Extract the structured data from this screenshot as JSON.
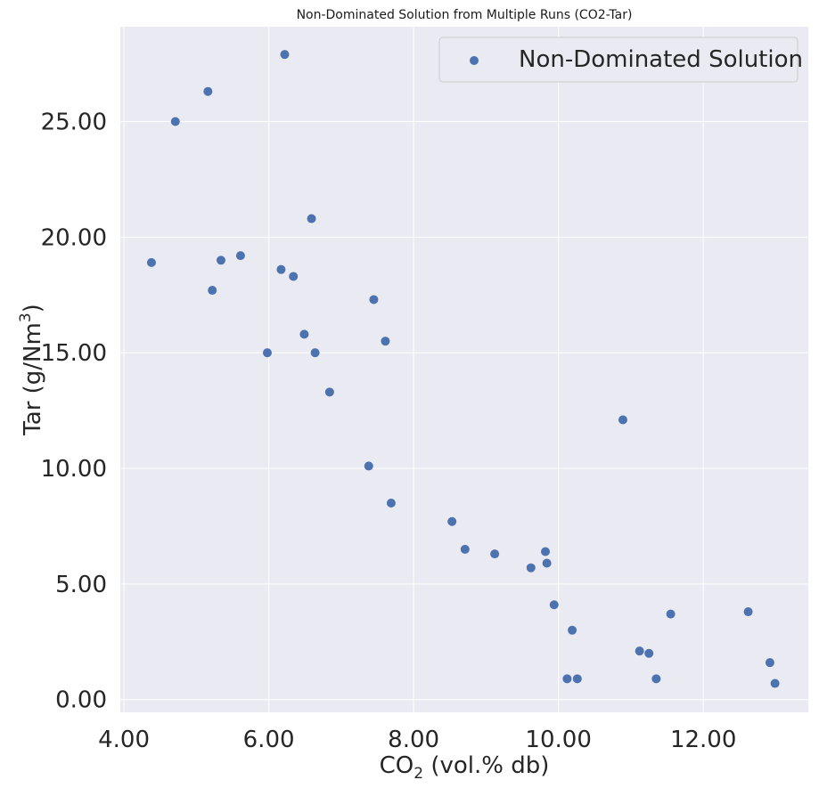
{
  "chart_data": {
    "type": "scatter",
    "title": "Non-Dominated Solution from Multiple Runs (CO2-Tar)",
    "xlabel": {
      "main": "CO",
      "sub": "2",
      "rest": " (vol.% db)"
    },
    "ylabel": {
      "main": "Tar (g/Nm",
      "sup": "3",
      "rest": ")"
    },
    "xlim": [
      3.95,
      13.45
    ],
    "ylim": [
      -0.55,
      29.1
    ],
    "x_ticks": [
      4,
      6,
      8,
      10,
      12
    ],
    "x_tick_labels": [
      "4.00",
      "6.00",
      "8.00",
      "10.00",
      "12.00"
    ],
    "y_ticks": [
      0,
      5,
      10,
      15,
      20,
      25
    ],
    "y_tick_labels": [
      "0.00",
      "5.00",
      "10.00",
      "15.00",
      "20.00",
      "25.00"
    ],
    "grid": true,
    "legend_position": "top-right",
    "colors": {
      "background": "#eaeaf2",
      "grid": "#ffffff",
      "point": "#4c72b0"
    },
    "series": [
      {
        "name": "Non-Dominated Solution",
        "x": [
          6.22,
          5.16,
          4.71,
          6.59,
          4.38,
          5.61,
          5.34,
          6.17,
          6.34,
          5.22,
          7.45,
          6.49,
          7.61,
          5.98,
          6.64,
          6.84,
          10.89,
          7.38,
          7.69,
          8.53,
          8.71,
          9.82,
          9.12,
          9.84,
          9.62,
          9.94,
          11.55,
          10.19,
          12.62,
          11.12,
          11.25,
          12.92,
          10.12,
          10.26,
          11.35,
          12.99
        ],
        "y": [
          27.9,
          26.3,
          25.0,
          20.8,
          18.9,
          19.2,
          19.0,
          18.6,
          18.3,
          17.7,
          17.3,
          15.8,
          15.5,
          15.0,
          15.0,
          13.3,
          12.1,
          10.1,
          8.5,
          7.7,
          6.5,
          6.4,
          6.3,
          5.9,
          5.7,
          4.1,
          3.7,
          3.0,
          3.8,
          2.1,
          2.0,
          1.6,
          0.9,
          0.9,
          0.9,
          0.7
        ]
      }
    ]
  }
}
